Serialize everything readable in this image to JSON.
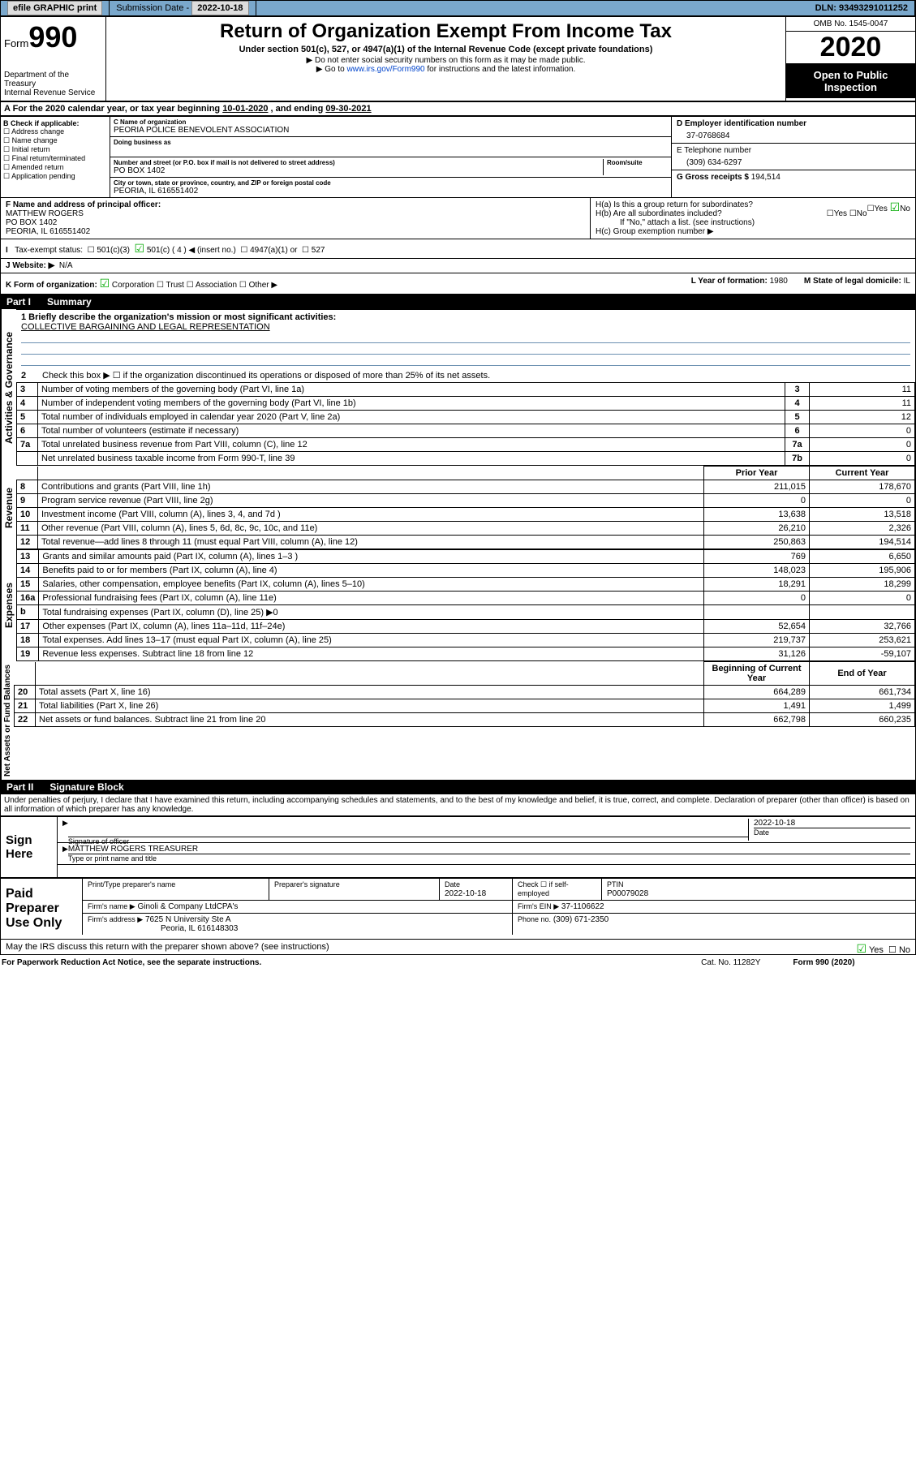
{
  "topbar": {
    "efile": "efile GRAPHIC print",
    "subdate_label": "Submission Date",
    "subdate": "2022-10-18",
    "dln_label": "DLN:",
    "dln": "93493291011252"
  },
  "header": {
    "form_label": "Form",
    "form_number": "990",
    "dept": "Department of the Treasury\nInternal Revenue Service",
    "title": "Return of Organization Exempt From Income Tax",
    "sub1": "Under section 501(c), 527, or 4947(a)(1) of the Internal Revenue Code (except private foundations)",
    "sub2": "▶ Do not enter social security numbers on this form as it may be made public.",
    "sub3_pre": "▶ Go to ",
    "sub3_link": "www.irs.gov/Form990",
    "sub3_post": " for instructions and the latest information.",
    "omb": "OMB No. 1545-0047",
    "year": "2020",
    "open": "Open to Public Inspection"
  },
  "a": {
    "text": "A For the 2020 calendar year, or tax year beginning ",
    "begin": "10-01-2020",
    "mid": " , and ending ",
    "end": "09-30-2021"
  },
  "b": {
    "label": "B Check if applicable:",
    "items": [
      "Address change",
      "Name change",
      "Initial return",
      "Final return/terminated",
      "Amended return",
      "Application pending"
    ]
  },
  "c": {
    "name_lbl": "C Name of organization",
    "name": "PEORIA POLICE BENEVOLENT ASSOCIATION",
    "dba_lbl": "Doing business as",
    "addr_lbl": "Number and street (or P.O. box if mail is not delivered to street address)",
    "room_lbl": "Room/suite",
    "addr": "PO BOX 1402",
    "city_lbl": "City or town, state or province, country, and ZIP or foreign postal code",
    "city": "PEORIA, IL  616551402"
  },
  "d": {
    "lbl": "D Employer identification number",
    "val": "37-0768684"
  },
  "e": {
    "lbl": "E Telephone number",
    "val": "(309) 634-6297"
  },
  "g": {
    "lbl": "G Gross receipts $",
    "val": "194,514"
  },
  "f": {
    "lbl": "F Name and address of principal officer:",
    "name": "MATTHEW ROGERS",
    "addr1": "PO BOX 1402",
    "addr2": "PEORIA, IL  616551402"
  },
  "h": {
    "ha": "H(a)  Is this a group return for subordinates?",
    "ha_no": "No",
    "hb": "H(b)  Are all subordinates included?",
    "hb_note": "If \"No,\" attach a list. (see instructions)",
    "hc": "H(c)  Group exemption number ▶"
  },
  "i": {
    "lbl": "Tax-exempt status:",
    "opt1": "501(c)(3)",
    "opt2": "501(c) ( 4 ) ◀ (insert no.)",
    "opt3": "4947(a)(1) or",
    "opt4": "527"
  },
  "j": {
    "lbl": "J   Website: ▶",
    "val": "N/A"
  },
  "k": {
    "lbl": "K Form of organization:",
    "opts": [
      "Corporation",
      "Trust",
      "Association",
      "Other ▶"
    ],
    "l_lbl": "L Year of formation:",
    "l_val": "1980",
    "m_lbl": "M State of legal domicile:",
    "m_val": "IL"
  },
  "part1": {
    "num": "Part I",
    "title": "Summary"
  },
  "summary": {
    "side1": "Activities & Governance",
    "line1_lbl": "1  Briefly describe the organization's mission or most significant activities:",
    "line1_val": "COLLECTIVE BARGAINING AND LEGAL REPRESENTATION",
    "line2": "Check this box ▶ ☐  if the organization discontinued its operations or disposed of more than 25% of its net assets.",
    "rows_gov": [
      {
        "n": "3",
        "t": "Number of voting members of the governing body (Part VI, line 1a)",
        "b": "3",
        "v": "11"
      },
      {
        "n": "4",
        "t": "Number of independent voting members of the governing body (Part VI, line 1b)",
        "b": "4",
        "v": "11"
      },
      {
        "n": "5",
        "t": "Total number of individuals employed in calendar year 2020 (Part V, line 2a)",
        "b": "5",
        "v": "12"
      },
      {
        "n": "6",
        "t": "Total number of volunteers (estimate if necessary)",
        "b": "6",
        "v": "0"
      },
      {
        "n": "7a",
        "t": "Total unrelated business revenue from Part VIII, column (C), line 12",
        "b": "7a",
        "v": "0"
      },
      {
        "n": "",
        "t": "Net unrelated business taxable income from Form 990-T, line 39",
        "b": "7b",
        "v": "0"
      }
    ],
    "side2": "Revenue",
    "hdr_prior": "Prior Year",
    "hdr_curr": "Current Year",
    "rows_rev": [
      {
        "n": "8",
        "t": "Contributions and grants (Part VIII, line 1h)",
        "p": "211,015",
        "c": "178,670"
      },
      {
        "n": "9",
        "t": "Program service revenue (Part VIII, line 2g)",
        "p": "0",
        "c": "0"
      },
      {
        "n": "10",
        "t": "Investment income (Part VIII, column (A), lines 3, 4, and 7d )",
        "p": "13,638",
        "c": "13,518"
      },
      {
        "n": "11",
        "t": "Other revenue (Part VIII, column (A), lines 5, 6d, 8c, 9c, 10c, and 11e)",
        "p": "26,210",
        "c": "2,326"
      },
      {
        "n": "12",
        "t": "Total revenue—add lines 8 through 11 (must equal Part VIII, column (A), line 12)",
        "p": "250,863",
        "c": "194,514"
      }
    ],
    "side3": "Expenses",
    "rows_exp": [
      {
        "n": "13",
        "t": "Grants and similar amounts paid (Part IX, column (A), lines 1–3 )",
        "p": "769",
        "c": "6,650"
      },
      {
        "n": "14",
        "t": "Benefits paid to or for members (Part IX, column (A), line 4)",
        "p": "148,023",
        "c": "195,906"
      },
      {
        "n": "15",
        "t": "Salaries, other compensation, employee benefits (Part IX, column (A), lines 5–10)",
        "p": "18,291",
        "c": "18,299"
      },
      {
        "n": "16a",
        "t": "Professional fundraising fees (Part IX, column (A), line 11e)",
        "p": "0",
        "c": "0"
      },
      {
        "n": "b",
        "t": "Total fundraising expenses (Part IX, column (D), line 25) ▶0",
        "p": "",
        "c": ""
      },
      {
        "n": "17",
        "t": "Other expenses (Part IX, column (A), lines 11a–11d, 11f–24e)",
        "p": "52,654",
        "c": "32,766"
      },
      {
        "n": "18",
        "t": "Total expenses. Add lines 13–17 (must equal Part IX, column (A), line 25)",
        "p": "219,737",
        "c": "253,621"
      },
      {
        "n": "19",
        "t": "Revenue less expenses. Subtract line 18 from line 12",
        "p": "31,126",
        "c": "-59,107"
      }
    ],
    "side4": "Net Assets or Fund Balances",
    "hdr_beg": "Beginning of Current Year",
    "hdr_end": "End of Year",
    "rows_net": [
      {
        "n": "20",
        "t": "Total assets (Part X, line 16)",
        "p": "664,289",
        "c": "661,734"
      },
      {
        "n": "21",
        "t": "Total liabilities (Part X, line 26)",
        "p": "1,491",
        "c": "1,499"
      },
      {
        "n": "22",
        "t": "Net assets or fund balances. Subtract line 21 from line 20",
        "p": "662,798",
        "c": "660,235"
      }
    ]
  },
  "part2": {
    "num": "Part II",
    "title": "Signature Block"
  },
  "penalty": "Under penalties of perjury, I declare that I have examined this return, including accompanying schedules and statements, and to the best of my knowledge and belief, it is true, correct, and complete. Declaration of preparer (other than officer) is based on all information of which preparer has any knowledge.",
  "sign": {
    "label": "Sign Here",
    "sig_lbl": "Signature of officer",
    "date_lbl": "Date",
    "date": "2022-10-18",
    "name": "MATTHEW ROGERS  TREASURER",
    "name_lbl": "Type or print name and title"
  },
  "prep": {
    "label": "Paid Preparer Use Only",
    "col1": "Print/Type preparer's name",
    "col2": "Preparer's signature",
    "col3": "Date",
    "col3v": "2022-10-18",
    "col4": "Check ☐ if self-employed",
    "col5": "PTIN",
    "col5v": "P00079028",
    "firm_lbl": "Firm's name      ▶",
    "firm": "Ginoli & Company LtdCPA's",
    "ein_lbl": "Firm's EIN ▶",
    "ein": "37-1106622",
    "addr_lbl": "Firm's address ▶",
    "addr1": "7625 N University Ste A",
    "addr2": "Peoria, IL  616148303",
    "phone_lbl": "Phone no.",
    "phone": "(309) 671-2350"
  },
  "discuss": "May the IRS discuss this return with the preparer shown above? (see instructions)",
  "yes": "Yes",
  "no": "No",
  "footer": {
    "pra": "For Paperwork Reduction Act Notice, see the separate instructions.",
    "cat": "Cat. No. 11282Y",
    "form": "Form 990 (2020)"
  }
}
